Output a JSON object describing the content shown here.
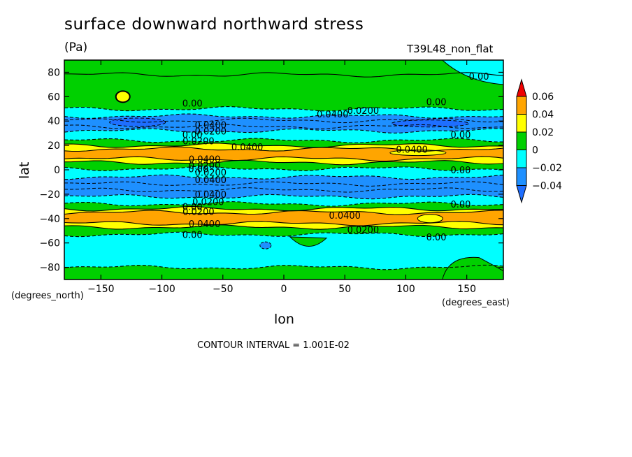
{
  "chart_data": {
    "type": "heatmap",
    "title": "surface downward northward stress",
    "units": "(Pa)",
    "run_label": "T39L48_non_flat",
    "xlabel": "lon",
    "ylabel": "lat",
    "x_units": "(degrees_east)",
    "y_units": "(degrees_north)",
    "xlim": [
      -180,
      180
    ],
    "ylim": [
      -90,
      90
    ],
    "x_ticks": [
      -150,
      -100,
      -50,
      0,
      50,
      100,
      150
    ],
    "y_ticks": [
      -80,
      -60,
      -40,
      -20,
      0,
      20,
      40,
      60,
      80
    ],
    "x_tick_labels": [
      "−150",
      "−100",
      "−50",
      "0",
      "50",
      "100",
      "150"
    ],
    "y_tick_labels": [
      "−80",
      "−60",
      "−40",
      "−20",
      "0",
      "20",
      "40",
      "60",
      "80"
    ],
    "contour_interval_text": "CONTOUR INTERVAL = 1.001E-02",
    "colorbar": {
      "levels": [
        "0.06",
        "0.04",
        "0.02",
        "0",
        "−0.02",
        "−0.04"
      ],
      "colors": [
        "#ff0000",
        "#ffa500",
        "#ffff00",
        "#00d000",
        "#00ffff",
        "#1e90ff"
      ],
      "over_color": "#ee0000",
      "under_color": "#1e6eff"
    },
    "zonal_bands": [
      {
        "lat_top": 90,
        "lat_bottom": 78,
        "value": 0.005,
        "color": "#00d000"
      },
      {
        "lat_top": 78,
        "lat_bottom": 50,
        "value": 0.01,
        "color": "#00d000"
      },
      {
        "lat_top": 50,
        "lat_bottom": 44,
        "value": -0.01,
        "color": "#00ffff"
      },
      {
        "lat_top": 44,
        "lat_bottom": 32,
        "value": -0.03,
        "color": "#1e90ff"
      },
      {
        "lat_top": 32,
        "lat_bottom": 24,
        "value": -0.01,
        "color": "#00ffff"
      },
      {
        "lat_top": 24,
        "lat_bottom": 20,
        "value": 0.01,
        "color": "#00d000"
      },
      {
        "lat_top": 20,
        "lat_bottom": 17,
        "value": 0.03,
        "color": "#ffff00"
      },
      {
        "lat_top": 17,
        "lat_bottom": 9,
        "value": 0.045,
        "color": "#ffa500"
      },
      {
        "lat_top": 9,
        "lat_bottom": 6,
        "value": 0.03,
        "color": "#ffff00"
      },
      {
        "lat_top": 6,
        "lat_bottom": 1,
        "value": 0.01,
        "color": "#00d000"
      },
      {
        "lat_top": 1,
        "lat_bottom": -6,
        "value": -0.01,
        "color": "#00ffff"
      },
      {
        "lat_top": -6,
        "lat_bottom": -22,
        "value": -0.035,
        "color": "#1e90ff"
      },
      {
        "lat_top": -22,
        "lat_bottom": -28,
        "value": -0.01,
        "color": "#00ffff"
      },
      {
        "lat_top": -28,
        "lat_bottom": -32,
        "value": 0.01,
        "color": "#00d000"
      },
      {
        "lat_top": -32,
        "lat_bottom": -35,
        "value": 0.03,
        "color": "#ffff00"
      },
      {
        "lat_top": -35,
        "lat_bottom": -44,
        "value": 0.045,
        "color": "#ffa500"
      },
      {
        "lat_top": -44,
        "lat_bottom": -47,
        "value": 0.03,
        "color": "#ffff00"
      },
      {
        "lat_top": -47,
        "lat_bottom": -53,
        "value": 0.01,
        "color": "#00d000"
      },
      {
        "lat_top": -53,
        "lat_bottom": -80,
        "value": -0.01,
        "color": "#00ffff"
      },
      {
        "lat_top": -80,
        "lat_bottom": -90,
        "value": 0.005,
        "color": "#00d000"
      }
    ],
    "contour_labels": [
      {
        "text": "0.00",
        "lon": 160,
        "lat": 76
      },
      {
        "text": "0.00",
        "lon": -75,
        "lat": 54
      },
      {
        "text": "0.00",
        "lon": 125,
        "lat": 55
      },
      {
        "text": "0.0200",
        "lon": 65,
        "lat": 48
      },
      {
        "text": "0.0400",
        "lon": 40,
        "lat": 45
      },
      {
        "text": "0.0400",
        "lon": -60,
        "lat": 36
      },
      {
        "text": "0.0200",
        "lon": -60,
        "lat": 31
      },
      {
        "text": "0.00",
        "lon": -75,
        "lat": 28
      },
      {
        "text": "0.0200",
        "lon": -70,
        "lat": 23
      },
      {
        "text": "0.00",
        "lon": 145,
        "lat": 28
      },
      {
        "text": "0.0400",
        "lon": -30,
        "lat": 18
      },
      {
        "text": "0.0400",
        "lon": 105,
        "lat": 16
      },
      {
        "text": "0.0400",
        "lon": -65,
        "lat": 8
      },
      {
        "text": "0.0200",
        "lon": -65,
        "lat": 3
      },
      {
        "text": "0.00",
        "lon": -70,
        "lat": 0
      },
      {
        "text": "0.0200",
        "lon": -60,
        "lat": -3
      },
      {
        "text": "0.0400",
        "lon": -60,
        "lat": -9
      },
      {
        "text": "0.00",
        "lon": 145,
        "lat": -1
      },
      {
        "text": "0.0400",
        "lon": -60,
        "lat": -21
      },
      {
        "text": "0.0200",
        "lon": -62,
        "lat": -27
      },
      {
        "text": "0.00",
        "lon": -75,
        "lat": -31
      },
      {
        "text": "0.0200",
        "lon": -70,
        "lat": -35
      },
      {
        "text": "0.00",
        "lon": 145,
        "lat": -29
      },
      {
        "text": "0.0400",
        "lon": 50,
        "lat": -38
      },
      {
        "text": "0.0400",
        "lon": -65,
        "lat": -45
      },
      {
        "text": "0.0200",
        "lon": 65,
        "lat": -50
      },
      {
        "text": "0.00",
        "lon": -75,
        "lat": -54
      },
      {
        "text": "0.00",
        "lon": 125,
        "lat": -56
      }
    ]
  }
}
